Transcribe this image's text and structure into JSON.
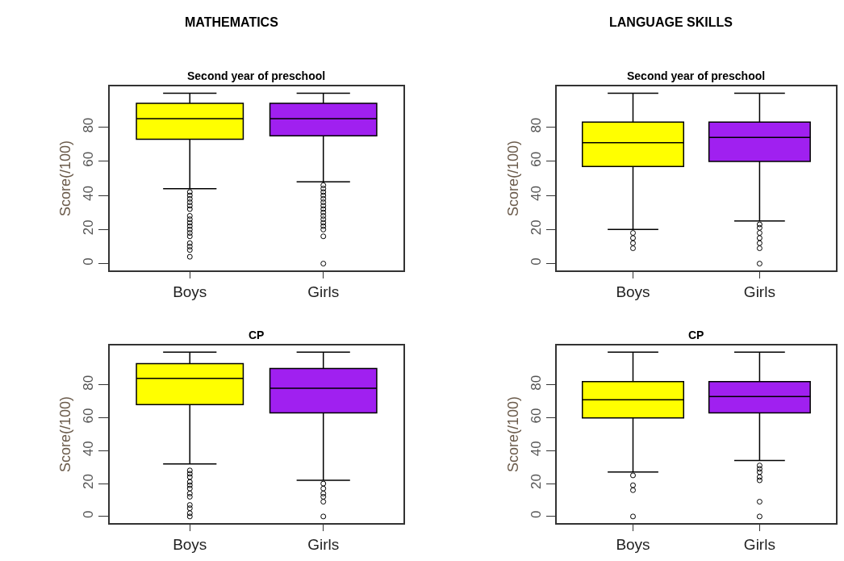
{
  "chart_data": [
    {
      "type": "box",
      "title": "MATHEMATICS",
      "subtitle": "Second year of preschool",
      "ylabel": "Score(/100)",
      "categories": [
        "Boys",
        "Girls"
      ],
      "colors": [
        "#ffff00",
        "#a020f0"
      ],
      "ylim": [
        -4,
        104
      ],
      "yticks": [
        0,
        20,
        40,
        60,
        80
      ],
      "marker": "circle",
      "boxes": [
        {
          "low": 44,
          "q1": 73,
          "median": 85,
          "q3": 94,
          "high": 100,
          "outliers": [
            42,
            40,
            38,
            36,
            34,
            32,
            28,
            26,
            24,
            22,
            20,
            18,
            16,
            12,
            10,
            8,
            4
          ]
        },
        {
          "low": 48,
          "q1": 75,
          "median": 85,
          "q3": 94,
          "high": 100,
          "outliers": [
            46,
            44,
            42,
            40,
            38,
            36,
            34,
            32,
            30,
            28,
            26,
            24,
            22,
            20,
            16,
            0
          ]
        }
      ]
    },
    {
      "type": "box",
      "title": "LANGUAGE SKILLS",
      "subtitle": "Second year of preschool",
      "ylabel": "Score(/100)",
      "categories": [
        "Boys",
        "Girls"
      ],
      "colors": [
        "#ffff00",
        "#a020f0"
      ],
      "ylim": [
        -4,
        104
      ],
      "yticks": [
        0,
        20,
        40,
        60,
        80
      ],
      "marker": "circle",
      "boxes": [
        {
          "low": 20,
          "q1": 57,
          "median": 71,
          "q3": 83,
          "high": 100,
          "outliers": [
            18,
            15,
            12,
            9
          ]
        },
        {
          "low": 25,
          "q1": 60,
          "median": 74,
          "q3": 83,
          "high": 100,
          "outliers": [
            23,
            21,
            18,
            15,
            12,
            9,
            0
          ]
        }
      ]
    },
    {
      "type": "box",
      "title": "CP",
      "ylabel": "Score(/100)",
      "categories": [
        "Boys",
        "Girls"
      ],
      "colors": [
        "#ffff00",
        "#a020f0"
      ],
      "ylim": [
        -4,
        104
      ],
      "yticks": [
        0,
        20,
        40,
        60,
        80
      ],
      "marker": "circle",
      "boxes": [
        {
          "low": 32,
          "q1": 68,
          "median": 84,
          "q3": 93,
          "high": 100,
          "outliers": [
            28,
            26,
            24,
            21,
            19,
            17,
            14,
            12,
            7,
            5,
            2,
            0
          ]
        },
        {
          "low": 22,
          "q1": 63,
          "median": 78,
          "q3": 90,
          "high": 100,
          "outliers": [
            20,
            17,
            14,
            12,
            9,
            0
          ]
        }
      ]
    },
    {
      "type": "box",
      "title": "CP",
      "ylabel": "Score(/100)",
      "categories": [
        "Boys",
        "Girls"
      ],
      "colors": [
        "#ffff00",
        "#a020f0"
      ],
      "ylim": [
        -4,
        104
      ],
      "yticks": [
        0,
        20,
        40,
        60,
        80
      ],
      "marker": "circle",
      "boxes": [
        {
          "low": 27,
          "q1": 60,
          "median": 71,
          "q3": 82,
          "high": 100,
          "outliers": [
            25,
            19,
            16,
            0
          ]
        },
        {
          "low": 34,
          "q1": 63,
          "median": 73,
          "q3": 82,
          "high": 100,
          "outliers": [
            31,
            29,
            27,
            24,
            22,
            9,
            0
          ]
        }
      ]
    }
  ]
}
